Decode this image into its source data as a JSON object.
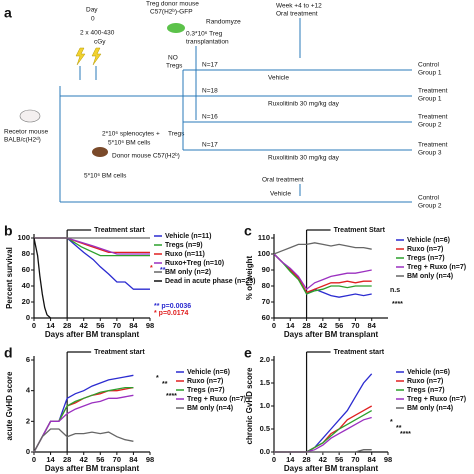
{
  "diagram": {
    "label": "a",
    "day": [
      "Day",
      "0"
    ],
    "irradiation": [
      "2 x 400-430",
      "cGy"
    ],
    "treg_donor": [
      "Treg donor mouse",
      "C57(H2ᵇ)-GFP"
    ],
    "randomize": "Randomyze",
    "treg_transplant": [
      "0.3*10⁶ Treg",
      "transplantation"
    ],
    "treatment_window": [
      "Week +4 to +12",
      "Oral treatment"
    ],
    "no_tregs": [
      "NO",
      "Tregs"
    ],
    "tregs": "Tregs",
    "branches": [
      {
        "n": "N=17",
        "treatment": "Vehicle",
        "outcome": [
          "Control",
          "Group 1"
        ]
      },
      {
        "n": "N=18",
        "treatment": "Ruxolitinib 30 mg/kg day",
        "outcome": [
          "Treatment",
          "Group 1"
        ]
      },
      {
        "n": "N=16",
        "outcome": [
          "Treatment",
          "Group 2"
        ]
      },
      {
        "n": "N=17",
        "treatment": "Ruxolitinib 30 mg/kg day",
        "outcome": [
          "Treatment",
          "Group 3"
        ]
      }
    ],
    "recipient": [
      "Recetor mouse",
      "BALB/c(H2ᵈ)"
    ],
    "graft": [
      "2*10⁶ splenocytes +",
      "5*10⁶ BM cells"
    ],
    "donor": "Donor mouse C57(H2ᵇ)",
    "bm_only": {
      "graft": "5*10⁶ BM cells",
      "treatment": "Oral treatment",
      "drug": "Vehicle",
      "outcome": [
        "Control",
        "Group 2"
      ]
    }
  },
  "chart_data": [
    {
      "type": "line",
      "label": "b",
      "ylabel": "Percent survival",
      "xlabel": "Days after BM transplant",
      "xlim": [
        0,
        98
      ],
      "xticks": [
        0,
        14,
        28,
        42,
        56,
        70,
        84,
        98
      ],
      "ylim": [
        0,
        100
      ],
      "yticks": [
        0,
        20,
        40,
        60,
        80,
        100
      ],
      "treatment_start": {
        "day": 28,
        "label": "Treatment start"
      },
      "annotations": [
        "*",
        "**",
        "** p=0.0036",
        "* p=0.0174"
      ],
      "series": [
        {
          "name": "Vehicle (n=11)",
          "color": "#2b2bd0",
          "x": [
            0,
            28,
            35,
            42,
            50,
            56,
            63,
            70,
            77,
            84,
            98
          ],
          "values": [
            100,
            100,
            91,
            82,
            73,
            64,
            55,
            45,
            45,
            36,
            36
          ]
        },
        {
          "name": "Tregs (n=9)",
          "color": "#2ca02c",
          "x": [
            0,
            28,
            40,
            56,
            70,
            98
          ],
          "values": [
            100,
            100,
            89,
            78,
            78,
            78
          ]
        },
        {
          "name": "Ruxo (n=11)",
          "color": "#e02020",
          "x": [
            0,
            28,
            45,
            63,
            98
          ],
          "values": [
            100,
            100,
            91,
            82,
            82
          ]
        },
        {
          "name": "Ruxo+Treg (n=10)",
          "color": "#9b30c0",
          "x": [
            0,
            28,
            50,
            70,
            98
          ],
          "values": [
            100,
            100,
            90,
            80,
            80
          ]
        },
        {
          "name": "BM only (n=2)",
          "color": "#666666",
          "x": [
            0,
            98
          ],
          "values": [
            100,
            100
          ]
        },
        {
          "name": "Dead in acute phase (n=23)",
          "color": "#111111",
          "x": [
            0,
            3,
            5,
            7,
            9,
            11,
            14
          ],
          "values": [
            100,
            78,
            52,
            30,
            13,
            4,
            0
          ]
        }
      ]
    },
    {
      "type": "line",
      "label": "c",
      "ylabel": "% of weight",
      "xlabel": "Days after BM transplant",
      "xlim": [
        0,
        98
      ],
      "xticks": [
        0,
        14,
        28,
        42,
        56,
        70,
        84
      ],
      "ylim": [
        60,
        110
      ],
      "yticks": [
        60,
        70,
        80,
        90,
        100,
        110
      ],
      "treatment_start": {
        "day": 28,
        "label": "Treatment Start"
      },
      "annotations": [
        "n.s",
        "****"
      ],
      "series": [
        {
          "name": "Vehicle (n=6)",
          "color": "#2b2bd0",
          "x": [
            0,
            7,
            14,
            21,
            28,
            35,
            42,
            49,
            56,
            63,
            70,
            77,
            84
          ],
          "values": [
            100,
            95,
            90,
            85,
            75,
            78,
            76,
            74,
            73,
            74,
            75,
            74,
            75
          ]
        },
        {
          "name": "Ruxo (n=7)",
          "color": "#e02020",
          "x": [
            0,
            7,
            14,
            21,
            28,
            35,
            42,
            49,
            56,
            63,
            70,
            77,
            84
          ],
          "values": [
            100,
            95,
            90,
            85,
            76,
            78,
            80,
            82,
            82,
            83,
            82,
            83,
            83
          ]
        },
        {
          "name": "Tregs (n=7)",
          "color": "#2ca02c",
          "x": [
            0,
            7,
            14,
            21,
            28,
            35,
            42,
            49,
            56,
            63,
            70,
            77,
            84
          ],
          "values": [
            100,
            95,
            89,
            84,
            75,
            77,
            78,
            80,
            80,
            79,
            80,
            80,
            80
          ]
        },
        {
          "name": "Treg + Ruxo (n=7)",
          "color": "#9b30c0",
          "x": [
            0,
            7,
            14,
            21,
            28,
            35,
            42,
            49,
            56,
            63,
            70,
            77,
            84
          ],
          "values": [
            100,
            95,
            91,
            86,
            78,
            82,
            84,
            86,
            87,
            88,
            88,
            89,
            90
          ]
        },
        {
          "name": "BM only (n=4)",
          "color": "#666666",
          "x": [
            0,
            7,
            14,
            21,
            28,
            35,
            42,
            49,
            56,
            63,
            70,
            77,
            84
          ],
          "values": [
            100,
            102,
            104,
            106,
            106,
            107,
            106,
            105,
            106,
            105,
            104,
            104,
            103
          ]
        }
      ]
    },
    {
      "type": "line",
      "label": "d",
      "ylabel": "acute GvHD score",
      "xlabel": "Days after BM transplant",
      "xlim": [
        0,
        98
      ],
      "xticks": [
        0,
        14,
        28,
        42,
        56,
        70,
        84,
        98
      ],
      "ylim": [
        0,
        6
      ],
      "yticks": [
        0,
        2,
        4,
        6
      ],
      "treatment_start": {
        "day": 28,
        "label": "Treatment start"
      },
      "annotations": [
        "*",
        "**",
        "****"
      ],
      "series": [
        {
          "name": "Vehicle (n=6)",
          "color": "#2b2bd0",
          "x": [
            0,
            7,
            14,
            21,
            28,
            35,
            42,
            49,
            56,
            63,
            70,
            77,
            84
          ],
          "values": [
            0,
            1,
            2,
            2,
            3.5,
            3.8,
            4,
            4.3,
            4.5,
            4.7,
            4.8,
            4.9,
            5
          ]
        },
        {
          "name": "Ruxo (n=7)",
          "color": "#e02020",
          "x": [
            0,
            7,
            14,
            21,
            28,
            35,
            42,
            49,
            56,
            63,
            70,
            77,
            84
          ],
          "values": [
            0,
            1,
            2,
            2,
            3,
            3.2,
            3.5,
            3.7,
            3.8,
            4,
            4,
            4.1,
            4.2
          ]
        },
        {
          "name": "Tregs (n=7)",
          "color": "#2ca02c",
          "x": [
            0,
            7,
            14,
            21,
            28,
            35,
            42,
            49,
            56,
            63,
            70,
            77,
            84
          ],
          "values": [
            0,
            1,
            2,
            2,
            3,
            3.3,
            3.5,
            3.7,
            3.9,
            4,
            4.1,
            4.2,
            4.2
          ]
        },
        {
          "name": "Treg + Ruxo (n=7)",
          "color": "#9b30c0",
          "x": [
            0,
            7,
            14,
            21,
            28,
            35,
            42,
            49,
            56,
            63,
            70,
            77,
            84
          ],
          "values": [
            0,
            1,
            2,
            2,
            2.5,
            2.8,
            3,
            3.2,
            3.3,
            3.5,
            3.5,
            3.6,
            3.7
          ]
        },
        {
          "name": "BM only (n=4)",
          "color": "#666666",
          "x": [
            0,
            7,
            14,
            21,
            28,
            35,
            42,
            49,
            56,
            63,
            70,
            77,
            84
          ],
          "values": [
            0,
            1,
            1.5,
            1.5,
            1,
            1.2,
            1.2,
            1.3,
            1.2,
            1.3,
            1,
            0.8,
            0.7
          ]
        }
      ]
    },
    {
      "type": "line",
      "label": "e",
      "ylabel": "chronic GvHD score",
      "xlabel": "Days after BM transplant",
      "xlim": [
        0,
        98
      ],
      "xticks": [
        0,
        14,
        28,
        42,
        56,
        70,
        84,
        98
      ],
      "ylim": [
        0,
        2
      ],
      "yticks": [
        {
          "value": 0,
          "label": "0.0"
        },
        {
          "value": 0.5,
          "label": "0.5"
        },
        {
          "value": 1,
          "label": "1.0"
        },
        {
          "value": 1.5,
          "label": "1.5"
        },
        {
          "value": 2,
          "label": "2.0"
        }
      ],
      "treatment_start": {
        "day": 28,
        "label": "Treatment start"
      },
      "annotations": [
        "*",
        "**",
        "****"
      ],
      "series": [
        {
          "name": "Vehicle (n=6)",
          "color": "#2b2bd0",
          "x": [
            0,
            7,
            14,
            21,
            28,
            35,
            42,
            49,
            56,
            63,
            70,
            77,
            84
          ],
          "values": [
            0,
            0,
            0,
            0,
            0,
            0.1,
            0.3,
            0.5,
            0.7,
            0.9,
            1.2,
            1.5,
            1.7
          ]
        },
        {
          "name": "Ruxo (n=7)",
          "color": "#e02020",
          "x": [
            0,
            7,
            14,
            21,
            28,
            35,
            42,
            49,
            56,
            63,
            70,
            77,
            84
          ],
          "values": [
            0,
            0,
            0,
            0,
            0,
            0.1,
            0.2,
            0.4,
            0.5,
            0.7,
            0.8,
            0.9,
            1
          ]
        },
        {
          "name": "Tregs (n=7)",
          "color": "#2ca02c",
          "x": [
            0,
            7,
            14,
            21,
            28,
            35,
            42,
            49,
            56,
            63,
            70,
            77,
            84
          ],
          "values": [
            0,
            0,
            0,
            0,
            0,
            0.1,
            0.2,
            0.35,
            0.5,
            0.6,
            0.7,
            0.8,
            0.9
          ]
        },
        {
          "name": "Treg + Ruxo (n=7)",
          "color": "#9b30c0",
          "x": [
            0,
            7,
            14,
            21,
            28,
            35,
            42,
            49,
            56,
            63,
            70,
            77,
            84
          ],
          "values": [
            0,
            0,
            0,
            0,
            0,
            0.05,
            0.15,
            0.3,
            0.4,
            0.5,
            0.6,
            0.7,
            0.75
          ]
        },
        {
          "name": "BM only (n=4)",
          "color": "#666666",
          "x": [
            0,
            7,
            14,
            21,
            28,
            35,
            42,
            49,
            56,
            63,
            70,
            77,
            84
          ],
          "values": [
            0,
            0,
            0,
            0,
            0,
            0,
            0,
            0,
            0,
            0,
            0,
            0.05,
            0.05
          ]
        }
      ]
    }
  ]
}
